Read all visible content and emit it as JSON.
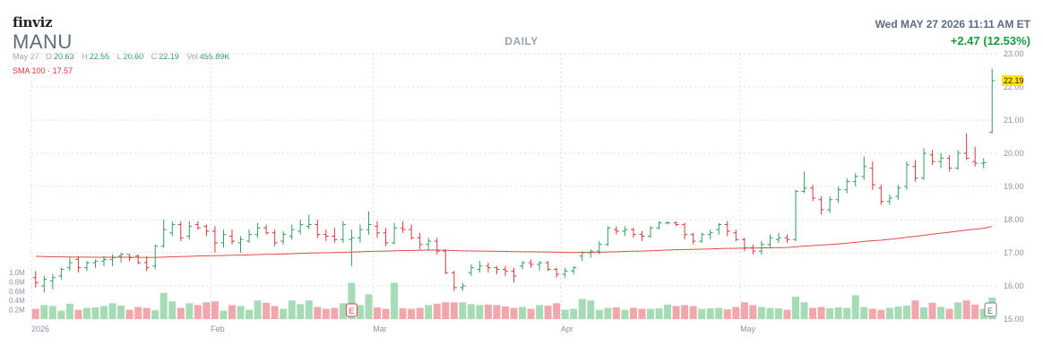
{
  "header": {
    "logo": "finviz",
    "ticker": "MANU",
    "period": "DAILY",
    "datetime": "Wed MAY 27 2026 11:11 AM ET",
    "change": "+2.47 (12.53%)"
  },
  "ohlc": {
    "date": "May 27",
    "open_label": "O",
    "open": "20.63",
    "high_label": "H",
    "high": "22.55",
    "low_label": "L",
    "low": "20.60",
    "close_label": "C",
    "close": "22.19",
    "vol_label": "Vol",
    "vol": "455.89K"
  },
  "sma": {
    "label": "SMA 100",
    "sep": "·",
    "value": "17.57"
  },
  "colors": {
    "up": "#2f9e5f",
    "down": "#d93a3a",
    "vol_up": "#a6dcb5",
    "vol_down": "#f2a7ad",
    "sma": "#e14b4b",
    "grid": "#d8dde6",
    "axis_text": "#8a93a3",
    "last_price_bg": "#ffe600"
  },
  "chart_data": {
    "type": "ohlc",
    "ylim": [
      15,
      23
    ],
    "yticks": [
      "15.00",
      "16.00",
      "17.00",
      "18.00",
      "19.00",
      "20.00",
      "21.00",
      "22.00",
      "23.00"
    ],
    "vol_ticks": [
      "0.2M",
      "0.4M",
      "0.6M",
      "0.8M",
      "1.0M"
    ],
    "vol_max": 1.0,
    "x_labels": [
      {
        "label": "2026",
        "index": 0
      },
      {
        "label": "Feb",
        "index": 21
      },
      {
        "label": "Mar",
        "index": 40
      },
      {
        "label": "Apr",
        "index": 62
      },
      {
        "label": "May",
        "index": 83
      }
    ],
    "last_price": "22.19",
    "earnings_marker": "E",
    "earnings_index": 37,
    "bars": [
      [
        16.25,
        16.45,
        15.95,
        16.1
      ],
      [
        16.0,
        16.3,
        15.8,
        16.2
      ],
      [
        16.15,
        16.35,
        15.9,
        16.25
      ],
      [
        16.3,
        16.55,
        16.2,
        16.5
      ],
      [
        16.55,
        16.85,
        16.45,
        16.7
      ],
      [
        16.8,
        16.9,
        16.4,
        16.55
      ],
      [
        16.55,
        16.75,
        16.45,
        16.7
      ],
      [
        16.7,
        16.8,
        16.55,
        16.75
      ],
      [
        16.75,
        16.9,
        16.6,
        16.8
      ],
      [
        16.8,
        16.95,
        16.6,
        16.85
      ],
      [
        16.9,
        17.0,
        16.7,
        16.95
      ],
      [
        16.95,
        16.95,
        16.75,
        16.85
      ],
      [
        16.9,
        16.95,
        16.65,
        16.7
      ],
      [
        16.7,
        16.9,
        16.45,
        16.55
      ],
      [
        16.6,
        17.25,
        16.5,
        17.2
      ],
      [
        17.2,
        18.0,
        17.15,
        17.7
      ],
      [
        17.6,
        17.95,
        17.5,
        17.85
      ],
      [
        17.85,
        17.95,
        17.35,
        17.45
      ],
      [
        17.5,
        17.95,
        17.4,
        17.8
      ],
      [
        17.85,
        17.95,
        17.7,
        17.75
      ],
      [
        17.8,
        17.85,
        17.5,
        17.65
      ],
      [
        17.65,
        17.8,
        17.0,
        17.3
      ],
      [
        17.3,
        17.7,
        17.15,
        17.55
      ],
      [
        17.5,
        17.7,
        17.25,
        17.35
      ],
      [
        17.3,
        17.5,
        17.0,
        17.4
      ],
      [
        17.35,
        17.7,
        17.3,
        17.55
      ],
      [
        17.55,
        17.9,
        17.45,
        17.75
      ],
      [
        17.75,
        17.85,
        17.55,
        17.6
      ],
      [
        17.6,
        17.7,
        17.2,
        17.3
      ],
      [
        17.35,
        17.65,
        17.25,
        17.55
      ],
      [
        17.5,
        17.85,
        17.4,
        17.7
      ],
      [
        17.65,
        18.0,
        17.55,
        17.85
      ],
      [
        17.8,
        18.15,
        17.7,
        17.85
      ],
      [
        17.85,
        18.0,
        17.45,
        17.55
      ],
      [
        17.55,
        17.7,
        17.35,
        17.5
      ],
      [
        17.5,
        17.75,
        17.3,
        17.4
      ],
      [
        17.4,
        17.95,
        17.3,
        17.85
      ],
      [
        17.4,
        17.7,
        16.6,
        17.45
      ],
      [
        17.45,
        17.85,
        17.3,
        17.7
      ],
      [
        17.7,
        18.25,
        17.55,
        17.85
      ],
      [
        17.8,
        17.95,
        17.45,
        17.6
      ],
      [
        17.6,
        17.75,
        17.2,
        17.3
      ],
      [
        17.3,
        17.9,
        17.25,
        17.75
      ],
      [
        17.75,
        17.95,
        17.6,
        17.7
      ],
      [
        17.7,
        17.85,
        17.4,
        17.45
      ],
      [
        17.45,
        17.6,
        17.1,
        17.25
      ],
      [
        17.25,
        17.45,
        17.05,
        17.35
      ],
      [
        17.35,
        17.45,
        16.95,
        17.05
      ],
      [
        17.05,
        17.1,
        16.35,
        16.4
      ],
      [
        16.4,
        16.45,
        15.85,
        15.95
      ],
      [
        15.95,
        16.1,
        15.85,
        16.0
      ],
      [
        16.4,
        16.65,
        16.3,
        16.55
      ],
      [
        16.5,
        16.75,
        16.4,
        16.6
      ],
      [
        16.6,
        16.7,
        16.4,
        16.55
      ],
      [
        16.55,
        16.6,
        16.35,
        16.5
      ],
      [
        16.5,
        16.6,
        16.3,
        16.45
      ],
      [
        16.45,
        16.55,
        16.1,
        16.3
      ],
      [
        16.6,
        16.75,
        16.5,
        16.7
      ],
      [
        16.7,
        16.8,
        16.55,
        16.65
      ],
      [
        16.65,
        16.75,
        16.45,
        16.7
      ],
      [
        16.7,
        16.75,
        16.45,
        16.5
      ],
      [
        16.5,
        16.55,
        16.25,
        16.35
      ],
      [
        16.35,
        16.55,
        16.25,
        16.45
      ],
      [
        16.45,
        16.6,
        16.35,
        16.55
      ],
      [
        16.9,
        17.05,
        16.75,
        17.0
      ],
      [
        17.0,
        17.1,
        16.85,
        17.05
      ],
      [
        17.05,
        17.35,
        16.95,
        17.25
      ],
      [
        17.25,
        17.8,
        17.2,
        17.75
      ],
      [
        17.7,
        17.8,
        17.55,
        17.65
      ],
      [
        17.65,
        17.8,
        17.5,
        17.7
      ],
      [
        17.7,
        17.75,
        17.45,
        17.55
      ],
      [
        17.55,
        17.65,
        17.35,
        17.5
      ],
      [
        17.5,
        17.8,
        17.45,
        17.75
      ],
      [
        17.75,
        17.95,
        17.7,
        17.9
      ],
      [
        17.9,
        17.95,
        17.85,
        17.9
      ],
      [
        17.9,
        17.95,
        17.8,
        17.85
      ],
      [
        17.85,
        17.9,
        17.4,
        17.55
      ],
      [
        17.55,
        17.6,
        17.25,
        17.35
      ],
      [
        17.35,
        17.6,
        17.3,
        17.55
      ],
      [
        17.55,
        17.7,
        17.4,
        17.6
      ],
      [
        17.7,
        17.9,
        17.55,
        17.85
      ],
      [
        17.85,
        17.95,
        17.5,
        17.65
      ],
      [
        17.6,
        17.7,
        17.35,
        17.4
      ],
      [
        17.4,
        17.45,
        17.05,
        17.15
      ],
      [
        17.15,
        17.25,
        16.95,
        17.05
      ],
      [
        17.05,
        17.35,
        16.95,
        17.25
      ],
      [
        17.25,
        17.55,
        17.15,
        17.45
      ],
      [
        17.4,
        17.6,
        17.3,
        17.45
      ],
      [
        17.45,
        17.55,
        17.3,
        17.4
      ],
      [
        17.4,
        18.9,
        17.35,
        18.85
      ],
      [
        18.85,
        19.45,
        18.8,
        18.95
      ],
      [
        18.95,
        19.05,
        18.55,
        18.65
      ],
      [
        18.6,
        18.7,
        18.15,
        18.3
      ],
      [
        18.3,
        18.7,
        18.2,
        18.6
      ],
      [
        18.6,
        19.0,
        18.5,
        18.9
      ],
      [
        18.9,
        19.25,
        18.8,
        19.15
      ],
      [
        19.15,
        19.4,
        19.0,
        19.3
      ],
      [
        19.3,
        19.9,
        19.2,
        19.6
      ],
      [
        19.55,
        19.75,
        18.9,
        19.05
      ],
      [
        18.95,
        19.05,
        18.45,
        18.55
      ],
      [
        18.55,
        18.75,
        18.45,
        18.65
      ],
      [
        18.7,
        19.05,
        18.6,
        18.95
      ],
      [
        19.0,
        19.75,
        18.9,
        19.65
      ],
      [
        19.6,
        19.8,
        19.15,
        19.25
      ],
      [
        19.25,
        20.15,
        19.2,
        20.0
      ],
      [
        19.95,
        20.1,
        19.65,
        19.75
      ],
      [
        19.75,
        20.0,
        19.55,
        19.85
      ],
      [
        19.85,
        19.95,
        19.45,
        19.55
      ],
      [
        19.55,
        20.1,
        19.5,
        20.0
      ],
      [
        20.0,
        20.6,
        19.8,
        19.85
      ],
      [
        19.75,
        20.2,
        19.6,
        19.7
      ],
      [
        19.7,
        19.85,
        19.55,
        19.72
      ],
      [
        20.63,
        22.55,
        20.6,
        22.19
      ]
    ],
    "volume": [
      0.22,
      0.3,
      0.28,
      0.18,
      0.33,
      0.2,
      0.24,
      0.25,
      0.28,
      0.34,
      0.29,
      0.2,
      0.26,
      0.24,
      0.19,
      0.56,
      0.38,
      0.24,
      0.34,
      0.3,
      0.36,
      0.38,
      0.18,
      0.3,
      0.28,
      0.2,
      0.4,
      0.35,
      0.28,
      0.22,
      0.4,
      0.32,
      0.4,
      0.26,
      0.22,
      0.24,
      0.34,
      0.78,
      0.3,
      0.53,
      0.25,
      0.22,
      0.78,
      0.23,
      0.22,
      0.24,
      0.3,
      0.33,
      0.36,
      0.36,
      0.36,
      0.32,
      0.3,
      0.31,
      0.3,
      0.27,
      0.24,
      0.26,
      0.22,
      0.3,
      0.29,
      0.34,
      0.2,
      0.22,
      0.43,
      0.4,
      0.2,
      0.24,
      0.25,
      0.2,
      0.24,
      0.22,
      0.22,
      0.23,
      0.31,
      0.28,
      0.3,
      0.28,
      0.22,
      0.23,
      0.24,
      0.21,
      0.26,
      0.36,
      0.3,
      0.26,
      0.24,
      0.23,
      0.2,
      0.48,
      0.36,
      0.24,
      0.26,
      0.23,
      0.25,
      0.24,
      0.51,
      0.26,
      0.22,
      0.2,
      0.24,
      0.27,
      0.29,
      0.4,
      0.25,
      0.35,
      0.26,
      0.22,
      0.36,
      0.4,
      0.31,
      0.22,
      0.46
    ]
  }
}
